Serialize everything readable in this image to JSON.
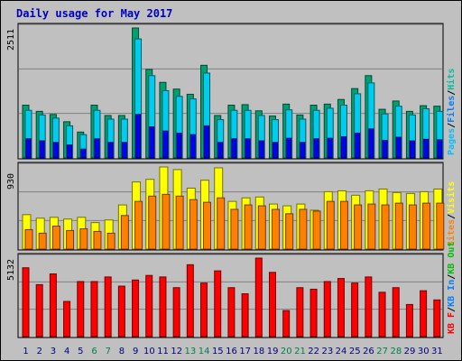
{
  "chart_data": {
    "type": "bar",
    "title": "Daily usage for May 2017",
    "title_color": "#0000c0",
    "categories": [
      "1",
      "2",
      "3",
      "4",
      "5",
      "6",
      "7",
      "8",
      "9",
      "10",
      "11",
      "12",
      "13",
      "14",
      "15",
      "16",
      "17",
      "18",
      "19",
      "20",
      "21",
      "22",
      "23",
      "24",
      "25",
      "26",
      "27",
      "28",
      "29",
      "30",
      "31"
    ],
    "weekend_days": [
      "6",
      "7",
      "13",
      "14",
      "20",
      "21",
      "27",
      "28"
    ],
    "weekday_label_color": "#000080",
    "weekend_label_color": "#00804c",
    "panels": [
      {
        "id": "hits-files-pages",
        "ymax_label": "2511",
        "ymax": 2511,
        "side_label": [
          "Pages",
          "/",
          "Files",
          "/",
          "Hits"
        ],
        "side_label_colors": [
          "#00c0ff",
          "#000000",
          "#0080ff",
          "#000000",
          "#00c0a0"
        ],
        "series": [
          {
            "name": "Hits",
            "color": "#00a070",
            "values": [
              1020,
              900,
              840,
              700,
              500,
              1020,
              820,
              820,
              2511,
              1710,
              1460,
              1330,
              1230,
              1790,
              820,
              1020,
              1030,
              910,
              810,
              1040,
              830,
              1020,
              1040,
              1130,
              1340,
              1590,
              940,
              1100,
              900,
              1010,
              1000
            ]
          },
          {
            "name": "Files",
            "color": "#00ccee",
            "values": [
              920,
              830,
              770,
              620,
              450,
              920,
              750,
              750,
              2300,
              1590,
              1300,
              1190,
              1140,
              1640,
              740,
              920,
              920,
              820,
              740,
              930,
              750,
              920,
              960,
              1020,
              1240,
              1450,
              850,
              1000,
              830,
              950,
              900
            ]
          },
          {
            "name": "Pages",
            "color": "#0000ff",
            "values": [
              370,
              330,
              300,
              250,
              170,
              370,
              300,
              300,
              840,
              600,
              520,
              480,
              450,
              620,
              300,
              370,
              370,
              330,
              300,
              380,
              300,
              370,
              380,
              410,
              480,
              560,
              340,
              400,
              330,
              360,
              350
            ]
          }
        ]
      },
      {
        "id": "visits-sites",
        "ymax_label": "930",
        "ymax": 930,
        "side_label": [
          "Sites",
          "/",
          "Visits"
        ],
        "side_label_colors": [
          "#ff8000",
          "#000000",
          "#ffff00"
        ],
        "series": [
          {
            "name": "Visits",
            "color": "#ffff00",
            "values": [
              390,
              350,
              360,
              340,
              360,
              300,
              330,
              500,
              760,
              790,
              930,
              900,
              690,
              780,
              920,
              540,
              580,
              590,
              510,
              490,
              510,
              440,
              650,
              660,
              610,
              660,
              680,
              640,
              630,
              650,
              680
            ]
          },
          {
            "name": "Sites",
            "color": "#ff8000",
            "values": [
              220,
              180,
              260,
              210,
              230,
              200,
              180,
              380,
              540,
              600,
              620,
              600,
              560,
              530,
              580,
              450,
              500,
              490,
              450,
              400,
              450,
              430,
              540,
              540,
              500,
              510,
              500,
              520,
              500,
              520,
              520
            ]
          }
        ]
      },
      {
        "id": "kbytes",
        "ymax_label": "5132",
        "ymax": 5132,
        "side_label": [
          "KB F",
          "/",
          "KB In",
          "/",
          "KB Out"
        ],
        "side_label_colors": [
          "#ff0000",
          "#000000",
          "#0080ff",
          "#000000",
          "#00c000"
        ],
        "series": [
          {
            "name": "KB F",
            "color": "#ff0000",
            "values": [
              4500,
              3400,
              4100,
              2300,
              3600,
              3600,
              3900,
              3300,
              3700,
              4000,
              3900,
              3200,
              4700,
              3500,
              4300,
              3200,
              2800,
              5132,
              4200,
              1700,
              3200,
              3100,
              3600,
              3800,
              3500,
              3900,
              2900,
              3200,
              2100,
              3000,
              2400
            ]
          }
        ]
      }
    ]
  }
}
